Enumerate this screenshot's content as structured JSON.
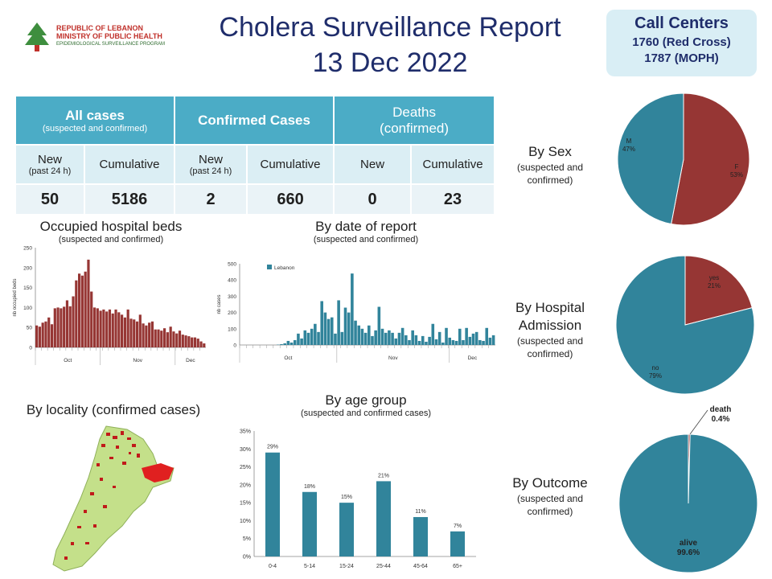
{
  "header": {
    "logo": {
      "line1": "REPUBLIC OF LEBANON",
      "line2": "MINISTRY OF PUBLIC HEALTH",
      "line3": "EPIDEMIOLOGICAL SURVEILLANCE PROGRAM"
    },
    "title_line1": "Cholera Surveillance Report",
    "title_line2": "13 Dec 2022"
  },
  "call_centers": {
    "title": "Call Centers",
    "line1": "1760 (Red Cross)",
    "line2": "1787 (MOPH)"
  },
  "summary_table": {
    "all_cases_title": "All cases",
    "all_cases_sub": "(suspected and confirmed)",
    "confirmed_title": "Confirmed  Cases",
    "deaths_title": "Deaths (confirmed)",
    "new_label": "New",
    "new_sub": "(past 24 h)",
    "cumulative_label": "Cumulative",
    "values": {
      "all_new": "50",
      "all_cum": "5186",
      "conf_new": "2",
      "conf_cum": "660",
      "death_new": "0",
      "death_cum": "23"
    }
  },
  "sections": {
    "beds_title": "Occupied hospital beds",
    "beds_sub": "(suspected and confirmed)",
    "date_title": "By date of report",
    "date_sub": "(suspected and confirmed)",
    "locality_title": "By locality (confirmed cases)",
    "age_title": "By age group",
    "age_sub": "(suspected and confirmed cases)",
    "sex_title": "By Sex",
    "sex_sub": "(suspected and confirmed)",
    "hosp_title": "By Hospital Admission",
    "hosp_sub": "(suspected and confirmed)",
    "outcome_title": "By Outcome",
    "outcome_sub": "(suspected and confirmed)"
  },
  "colors": {
    "red": "#963634",
    "teal": "#31849b",
    "header_blue": "#4bacc6",
    "title_blue": "#1f2d6b"
  },
  "chart_data": [
    {
      "id": "beds",
      "type": "bar",
      "title": "Occupied hospital beds",
      "ylabel": "nb occupied beds",
      "ylim": [
        0,
        250
      ],
      "yticks": [
        0,
        50,
        100,
        150,
        200,
        250
      ],
      "month_labels": [
        "Oct",
        "Nov",
        "Dec"
      ],
      "values": [
        55,
        52,
        62,
        65,
        75,
        58,
        98,
        100,
        98,
        102,
        118,
        103,
        128,
        168,
        185,
        180,
        190,
        220,
        140,
        100,
        98,
        92,
        95,
        90,
        95,
        85,
        95,
        88,
        82,
        75,
        95,
        72,
        70,
        65,
        82,
        60,
        55,
        62,
        65,
        45,
        45,
        42,
        48,
        38,
        52,
        40,
        35,
        42,
        32,
        30,
        28,
        25,
        25,
        22,
        15,
        10
      ]
    },
    {
      "id": "by_date",
      "type": "bar",
      "title": "By date of report",
      "ylabel": "nb cases",
      "legend": "Lebanon",
      "ylim": [
        0,
        500
      ],
      "yticks": [
        0,
        100,
        200,
        300,
        400,
        500
      ],
      "month_labels": [
        "Oct",
        "Nov",
        "Dec"
      ],
      "values": [
        0,
        0,
        0,
        0,
        0,
        0,
        0,
        0,
        0,
        0,
        0,
        2,
        5,
        10,
        25,
        15,
        30,
        70,
        40,
        90,
        75,
        100,
        130,
        80,
        270,
        200,
        160,
        170,
        70,
        275,
        80,
        230,
        200,
        440,
        150,
        120,
        100,
        75,
        120,
        55,
        90,
        235,
        100,
        75,
        90,
        75,
        40,
        75,
        105,
        60,
        30,
        90,
        60,
        25,
        55,
        20,
        50,
        130,
        35,
        80,
        15,
        105,
        45,
        30,
        25,
        100,
        30,
        105,
        50,
        70,
        80,
        30,
        25,
        105,
        45,
        60
      ]
    },
    {
      "id": "age_group",
      "type": "bar",
      "title": "By age group",
      "categories": [
        "0-4",
        "5-14",
        "15-24",
        "25-44",
        "45-64",
        "65+"
      ],
      "values": [
        29,
        18,
        15,
        21,
        11,
        7
      ],
      "data_labels": [
        "29%",
        "18%",
        "15%",
        "21%",
        "11%",
        "7%"
      ],
      "ylim": [
        0,
        35
      ],
      "ytick_labels": [
        "0%",
        "5%",
        "10%",
        "15%",
        "20%",
        "25%",
        "30%",
        "35%"
      ]
    },
    {
      "id": "sex",
      "type": "pie",
      "title": "By Sex",
      "slices": [
        {
          "name": "F",
          "value": 53,
          "label": "53%"
        },
        {
          "name": "M",
          "value": 47,
          "label": "47%"
        }
      ]
    },
    {
      "id": "hospital",
      "type": "pie",
      "title": "By Hospital Admission",
      "slices": [
        {
          "name": "yes",
          "value": 21,
          "label": "21%"
        },
        {
          "name": "no",
          "value": 79,
          "label": "79%"
        }
      ]
    },
    {
      "id": "outcome",
      "type": "pie",
      "title": "By Outcome",
      "slices": [
        {
          "name": "death",
          "value": 0.4,
          "label": "0.4%"
        },
        {
          "name": "alive",
          "value": 99.6,
          "label": "99.6%"
        }
      ]
    }
  ]
}
